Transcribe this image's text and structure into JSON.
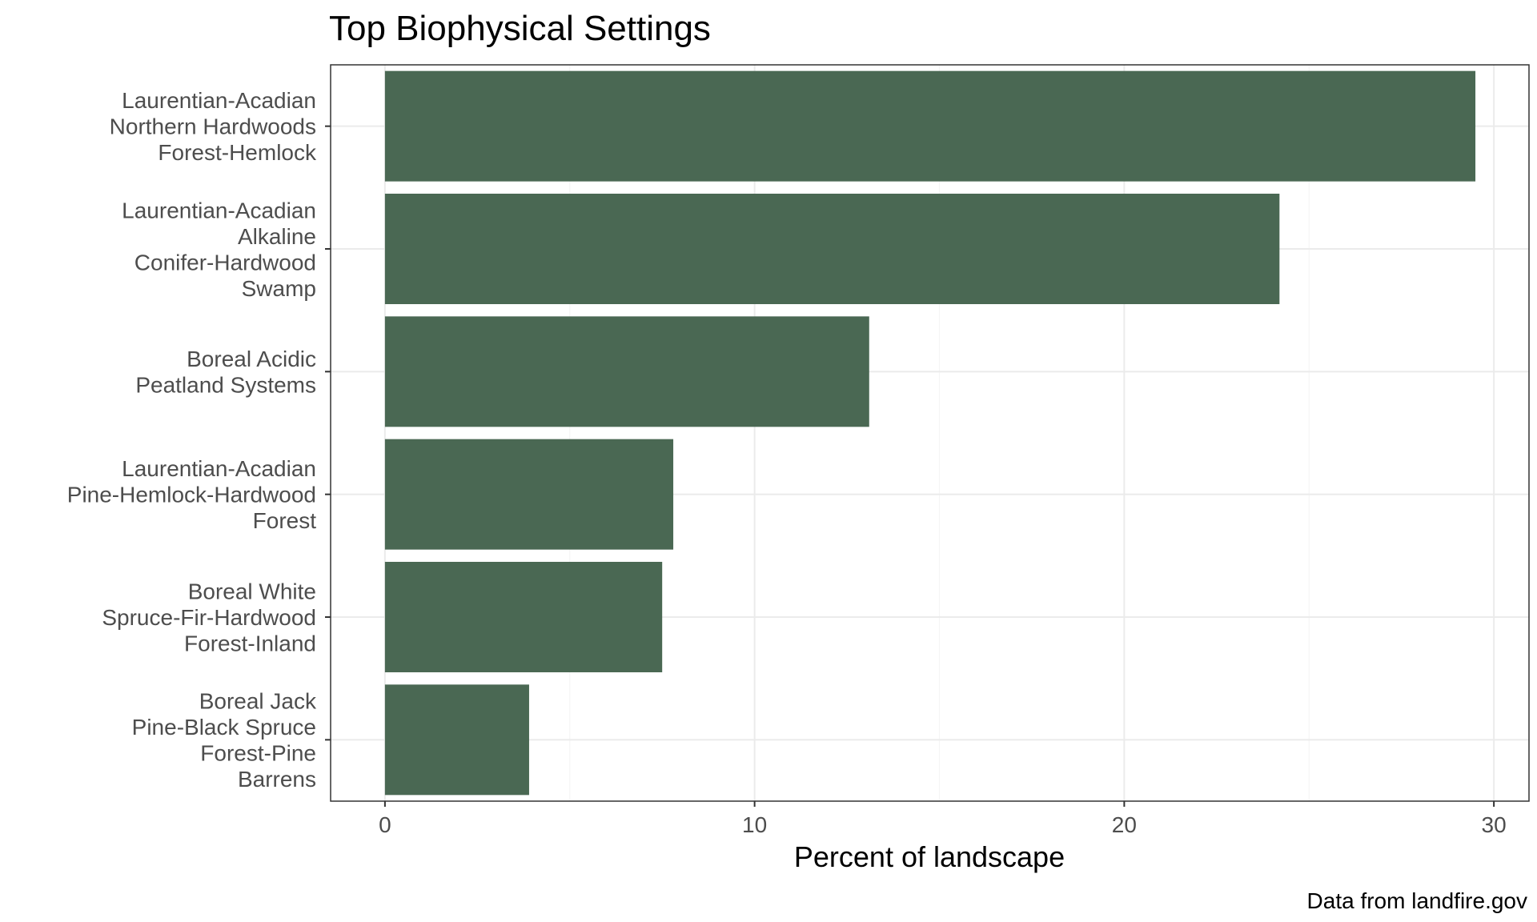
{
  "chart_data": {
    "type": "bar",
    "orientation": "horizontal",
    "title": "Top Biophysical Settings",
    "xlabel": "Percent of landscape",
    "ylabel": "",
    "caption": "Data from landfire.gov",
    "categories": [
      "Laurentian-Acadian Northern Hardwoods Forest-Hemlock",
      "Laurentian-Acadian Alkaline Conifer-Hardwood Swamp",
      "Boreal Acidic Peatland Systems",
      "Laurentian-Acadian Pine-Hemlock-Hardwood Forest",
      "Boreal White Spruce-Fir-Hardwood Forest-Inland",
      "Boreal Jack Pine-Black Spruce Forest-Pine Barrens"
    ],
    "category_lines": [
      [
        "Laurentian-Acadian",
        "Northern Hardwoods",
        "Forest-Hemlock"
      ],
      [
        "Laurentian-Acadian",
        "Alkaline",
        "Conifer-Hardwood",
        "Swamp"
      ],
      [
        "Boreal Acidic",
        "Peatland Systems"
      ],
      [
        "Laurentian-Acadian",
        "Pine-Hemlock-Hardwood",
        "Forest"
      ],
      [
        "Boreal White",
        "Spruce-Fir-Hardwood",
        "Forest-Inland"
      ],
      [
        "Boreal Jack",
        "Pine-Black Spruce",
        "Forest-Pine",
        "Barrens"
      ]
    ],
    "values": [
      29.5,
      24.2,
      13.1,
      7.8,
      7.5,
      3.9
    ],
    "xlim": [
      -1.47,
      30.95
    ],
    "xticks": [
      0,
      10,
      20,
      30
    ],
    "grid": true,
    "legend": "none",
    "colors": {
      "bar": "#4a6853",
      "panel_border": "#333333",
      "grid_major": "#ebebeb",
      "grid_minor": "#f5f5f5"
    }
  }
}
